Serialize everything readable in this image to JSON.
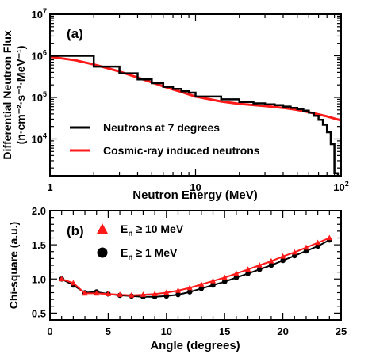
{
  "chart_data": [
    {
      "type": "line",
      "panel_label": "(a)",
      "xlabel": "Neutron Energy (MeV)",
      "ylabel": "Differential Neutron Flux",
      "ylabel_units": "(n·cm⁻²·s⁻¹·MeV⁻¹)",
      "xscale": "log",
      "yscale": "log",
      "xlim": [
        1,
        100
      ],
      "ylim": [
        1300,
        10000000
      ],
      "x_tick_labels": [
        {
          "value": 1,
          "label": "1"
        },
        {
          "value": 10,
          "label": "10"
        },
        {
          "value": 100,
          "label": "10",
          "sup": "2"
        }
      ],
      "y_tick_labels": [
        {
          "value": 10000,
          "label": "10",
          "sup": "4"
        },
        {
          "value": 100000,
          "label": "10",
          "sup": "5"
        },
        {
          "value": 1000000,
          "label": "10",
          "sup": "6"
        },
        {
          "value": 10000000,
          "label": "10",
          "sup": "7"
        }
      ],
      "legend_position": "bottom-left",
      "series": [
        {
          "name": "Neutrons at 7 degrees",
          "color": "#000000",
          "style": "histogram",
          "bin_edges": [
            1,
            2,
            3,
            4,
            5,
            6,
            7,
            8,
            9,
            10,
            15,
            20,
            25,
            30,
            35,
            40,
            45,
            50,
            55,
            60,
            65,
            70,
            75,
            80,
            85,
            90,
            95
          ],
          "values": [
            1000000,
            550000,
            380000,
            270000,
            220000,
            180000,
            160000,
            140000,
            130000,
            105000,
            90000,
            78000,
            72000,
            68000,
            65000,
            60000,
            56000,
            52000,
            48000,
            43000,
            36000,
            29000,
            22000,
            14500,
            7500,
            1500
          ]
        },
        {
          "name": "Cosmic-ray induced neutrons",
          "color": "#ff1a1a",
          "style": "line",
          "x": [
            1,
            1.5,
            2,
            3,
            4,
            5,
            6,
            7,
            8,
            9,
            10,
            15,
            20,
            30,
            40,
            50,
            60,
            70,
            80,
            90,
            100
          ],
          "y": [
            950000,
            780000,
            620000,
            420000,
            300000,
            230000,
            185000,
            155000,
            135000,
            118000,
            105000,
            80000,
            70000,
            62000,
            56000,
            50000,
            44000,
            39000,
            35000,
            31000,
            28000
          ]
        }
      ]
    },
    {
      "type": "line",
      "panel_label": "(b)",
      "xlabel": "Angle (degrees)",
      "ylabel": "Chi-square (a.u.)",
      "xlim": [
        0,
        25
      ],
      "ylim": [
        0.4,
        2.0
      ],
      "x_ticks": [
        0,
        5,
        10,
        15,
        20,
        25
      ],
      "y_ticks": [
        0.5,
        1.0,
        1.5,
        2.0
      ],
      "y_tick_labels": [
        "0.5",
        "1.0",
        "1.5",
        "2.0"
      ],
      "legend_position": "top-left",
      "series": [
        {
          "name_main": "E",
          "name_sub": "n",
          "name_rest": " ≥ 10 MeV",
          "color": "#ff1a1a",
          "marker": "triangle",
          "x": [
            1,
            2,
            3,
            4,
            5,
            6,
            7,
            8,
            9,
            10,
            11,
            12,
            13,
            14,
            15,
            16,
            17,
            18,
            19,
            20,
            21,
            22,
            23,
            24
          ],
          "y": [
            1.0,
            0.94,
            0.79,
            0.79,
            0.78,
            0.77,
            0.76,
            0.77,
            0.78,
            0.8,
            0.83,
            0.87,
            0.92,
            0.97,
            1.02,
            1.08,
            1.14,
            1.2,
            1.26,
            1.33,
            1.39,
            1.46,
            1.53,
            1.6
          ]
        },
        {
          "name_main": "E",
          "name_sub": "n",
          "name_rest": " ≥ 1 MeV",
          "color": "#000000",
          "marker": "circle",
          "x": [
            1,
            2,
            3,
            4,
            5,
            6,
            7,
            8,
            9,
            10,
            11,
            12,
            13,
            14,
            15,
            16,
            17,
            18,
            19,
            20,
            21,
            22,
            23,
            24
          ],
          "y": [
            1.0,
            0.91,
            0.8,
            0.81,
            0.78,
            0.76,
            0.75,
            0.74,
            0.74,
            0.75,
            0.77,
            0.81,
            0.86,
            0.91,
            0.96,
            1.02,
            1.08,
            1.14,
            1.2,
            1.27,
            1.34,
            1.41,
            1.48,
            1.57
          ]
        }
      ]
    }
  ]
}
